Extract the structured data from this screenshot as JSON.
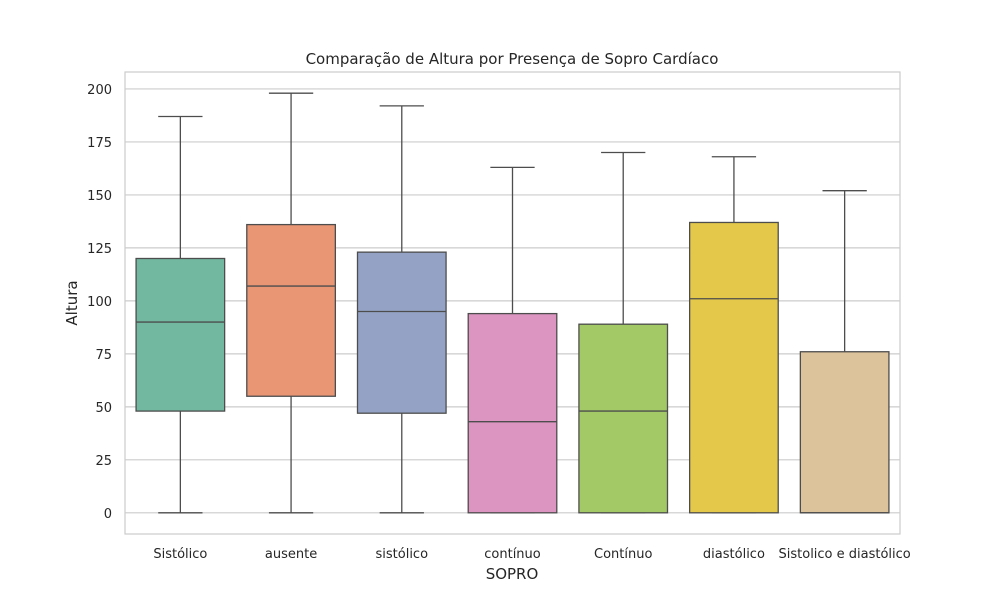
{
  "chart_data": {
    "type": "boxplot",
    "title": "Comparação de Altura por Presença de Sopro Cardíaco",
    "xlabel": "SOPRO",
    "ylabel": "Altura",
    "ylim": [
      -10,
      208
    ],
    "yticks": [
      0,
      25,
      50,
      75,
      100,
      125,
      150,
      175,
      200
    ],
    "grid": true,
    "categories": [
      "Sistólico",
      "ausente",
      "sistólico",
      "contínuo",
      "Contínuo",
      "diastólico",
      "Sistolico e diastólico"
    ],
    "boxes": [
      {
        "category": "Sistólico",
        "min": 0,
        "q1": 48,
        "median": 90,
        "q3": 120,
        "max": 187,
        "color": "#72b8a1"
      },
      {
        "category": "ausente",
        "min": 0,
        "q1": 55,
        "median": 107,
        "q3": 136,
        "max": 198,
        "color": "#e99675"
      },
      {
        "category": "sistólico",
        "min": 0,
        "q1": 47,
        "median": 95,
        "q3": 123,
        "max": 192,
        "color": "#94a3c5"
      },
      {
        "category": "contínuo",
        "min": 0,
        "q1": 0,
        "median": 43,
        "q3": 94,
        "max": 163,
        "color": "#dc95c0"
      },
      {
        "category": "Contínuo",
        "min": 0,
        "q1": 0,
        "median": 48,
        "q3": 89,
        "max": 170,
        "color": "#a3c966"
      },
      {
        "category": "diastólico",
        "min": 0,
        "q1": 0,
        "median": 101,
        "q3": 137,
        "max": 168,
        "color": "#e4c84a"
      },
      {
        "category": "Sistolico e diastólico",
        "min": 0,
        "q1": 0,
        "median": 0,
        "q3": 76,
        "max": 152,
        "color": "#dcc39c"
      }
    ],
    "colors": {
      "line": "#4d4d4d",
      "grid": "#cccccc",
      "frame": "#cccccc"
    }
  }
}
